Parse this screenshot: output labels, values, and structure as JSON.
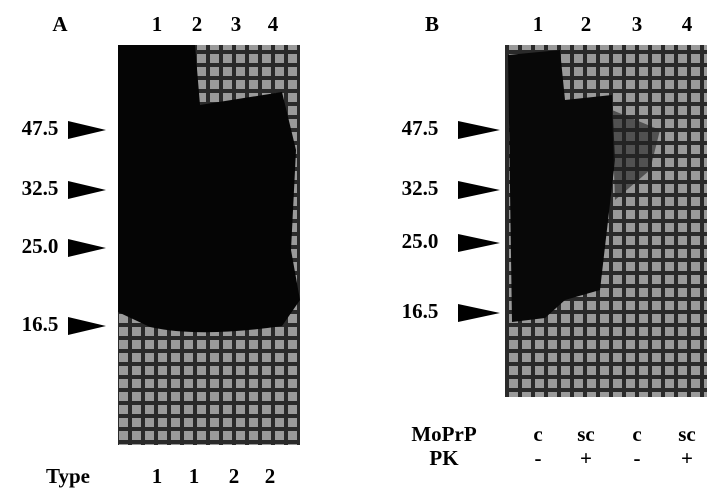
{
  "panels": [
    {
      "label": "A",
      "lanes": [
        "1",
        "2",
        "3",
        "4"
      ],
      "markers": [
        "47.5",
        "32.5",
        "25.0",
        "16.5"
      ],
      "rows": [
        {
          "label": "Type",
          "values": [
            "1",
            "1",
            "2",
            "2"
          ]
        }
      ]
    },
    {
      "label": "B",
      "lanes": [
        "1",
        "2",
        "3",
        "4"
      ],
      "markers": [
        "47.5",
        "32.5",
        "25.0",
        "16.5"
      ],
      "rows": [
        {
          "label": "MoPrP",
          "values": [
            "c",
            "sc",
            "c",
            "sc"
          ]
        },
        {
          "label": "PK",
          "values": [
            "-",
            "+",
            "-",
            "+"
          ]
        }
      ]
    }
  ]
}
